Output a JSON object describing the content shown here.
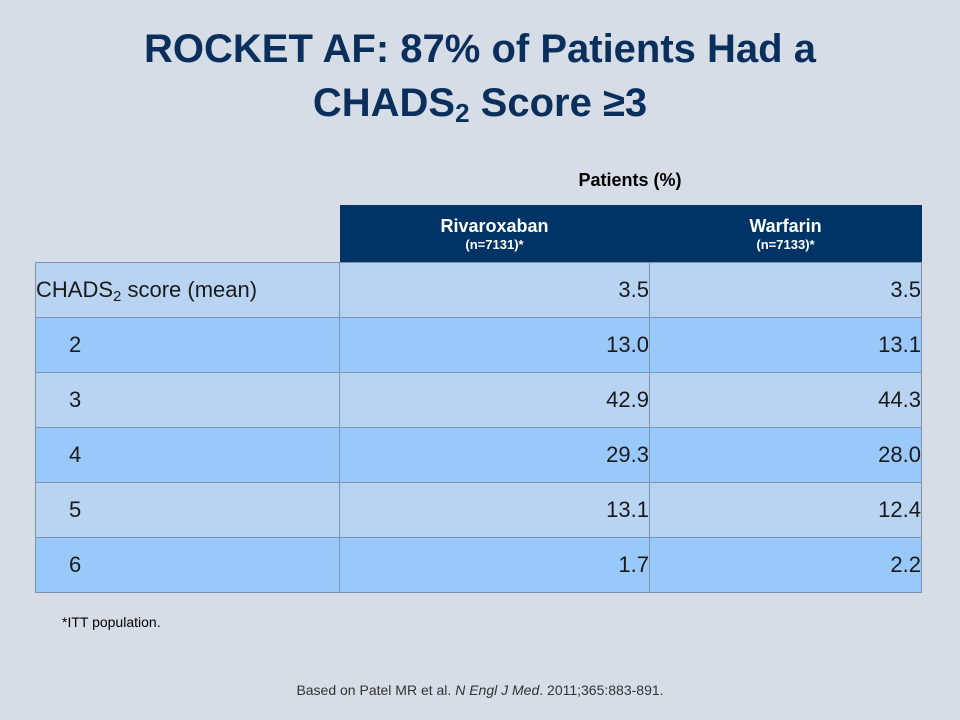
{
  "title": {
    "line1": "ROCKET AF: 87% of Patients Had a",
    "line2_prefix": "CHADS",
    "line2_sub": "2",
    "line2_suffix": " Score ≥3"
  },
  "table": {
    "group_header": "Patients (%)",
    "columns": [
      {
        "name": "Rivaroxaban",
        "n": "(n=7131)*"
      },
      {
        "name": "Warfarin",
        "n": "(n=7133)*"
      }
    ],
    "rows": [
      {
        "label_prefix": "CHADS",
        "label_sub": "2",
        "label_suffix": " score (mean)",
        "rivaroxaban": "3.5",
        "warfarin": "3.5"
      },
      {
        "label": "2",
        "rivaroxaban": "13.0",
        "warfarin": "13.1"
      },
      {
        "label": "3",
        "rivaroxaban": "42.9",
        "warfarin": "44.3"
      },
      {
        "label": "4",
        "rivaroxaban": "29.3",
        "warfarin": "28.0"
      },
      {
        "label": "5",
        "rivaroxaban": "13.1",
        "warfarin": "12.4"
      },
      {
        "label": "6",
        "rivaroxaban": "1.7",
        "warfarin": "2.2"
      }
    ]
  },
  "footnote": "*ITT population.",
  "citation": {
    "prefix": "Based on Patel MR et al. ",
    "journal": "N Engl J Med",
    "suffix": ". 2011;365:883-891."
  }
}
